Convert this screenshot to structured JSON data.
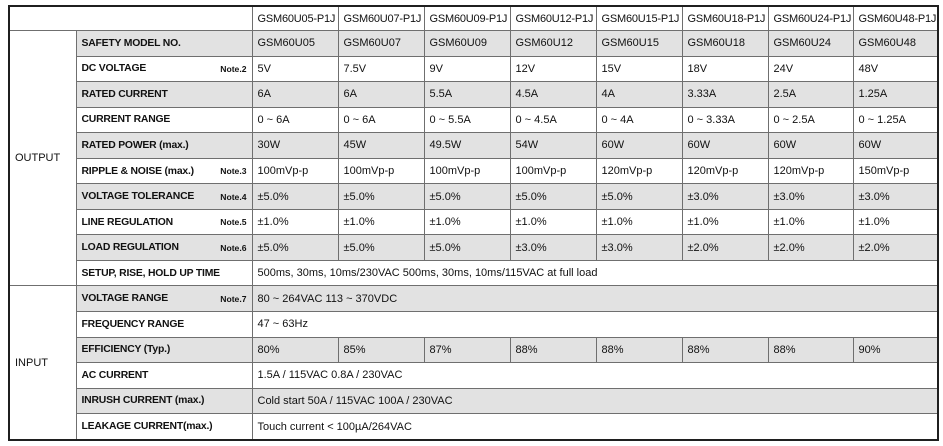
{
  "table": {
    "corner_label": "",
    "model_headers": [
      "GSM60U05-P1J",
      "GSM60U07-P1J",
      "GSM60U09-P1J",
      "GSM60U12-P1J",
      "GSM60U15-P1J",
      "GSM60U18-P1J",
      "GSM60U24-P1J",
      "GSM60U48-P1J"
    ],
    "shaded_color": "#e2e2e2",
    "groups": [
      {
        "label": "OUTPUT",
        "rows": [
          {
            "label": "SAFETY MODEL NO.",
            "note": "",
            "shaded": true,
            "cells": [
              "GSM60U05",
              "GSM60U07",
              "GSM60U09",
              "GSM60U12",
              "GSM60U15",
              "GSM60U18",
              "GSM60U24",
              "GSM60U48"
            ]
          },
          {
            "label": "DC VOLTAGE",
            "note": "Note.2",
            "shaded": false,
            "cells": [
              "5V",
              "7.5V",
              "9V",
              "12V",
              "15V",
              "18V",
              "24V",
              "48V"
            ]
          },
          {
            "label": "RATED CURRENT",
            "note": "",
            "shaded": true,
            "cells": [
              "6A",
              "6A",
              "5.5A",
              "4.5A",
              "4A",
              "3.33A",
              "2.5A",
              "1.25A"
            ]
          },
          {
            "label": "CURRENT RANGE",
            "note": "",
            "shaded": false,
            "cells": [
              "0 ~ 6A",
              "0 ~ 6A",
              "0 ~ 5.5A",
              "0 ~ 4.5A",
              "0 ~ 4A",
              "0 ~ 3.33A",
              "0 ~ 2.5A",
              "0 ~ 1.25A"
            ]
          },
          {
            "label": "RATED POWER (max.)",
            "note": "",
            "shaded": true,
            "cells": [
              "30W",
              "45W",
              "49.5W",
              "54W",
              "60W",
              "60W",
              "60W",
              "60W"
            ]
          },
          {
            "label": "RIPPLE & NOISE (max.)",
            "note": "Note.3",
            "shaded": false,
            "cells": [
              "100mVp-p",
              "100mVp-p",
              "100mVp-p",
              "100mVp-p",
              "120mVp-p",
              "120mVp-p",
              "120mVp-p",
              "150mVp-p"
            ]
          },
          {
            "label": "VOLTAGE TOLERANCE",
            "note": "Note.4",
            "shaded": true,
            "cells": [
              "±5.0%",
              "±5.0%",
              "±5.0%",
              "±5.0%",
              "±5.0%",
              "±3.0%",
              "±3.0%",
              "±3.0%"
            ]
          },
          {
            "label": "LINE REGULATION",
            "note": "Note.5",
            "shaded": false,
            "cells": [
              "±1.0%",
              "±1.0%",
              "±1.0%",
              "±1.0%",
              "±1.0%",
              "±1.0%",
              "±1.0%",
              "±1.0%"
            ]
          },
          {
            "label": "LOAD REGULATION",
            "note": "Note.6",
            "shaded": true,
            "cells": [
              "±5.0%",
              "±5.0%",
              "±5.0%",
              "±3.0%",
              "±3.0%",
              "±2.0%",
              "±2.0%",
              "±2.0%"
            ]
          },
          {
            "label": "SETUP, RISE, HOLD UP TIME",
            "note": "",
            "shaded": false,
            "merged": "500ms, 30ms, 10ms/230VAC        500ms, 30ms, 10ms/115VAC  at full load"
          }
        ]
      },
      {
        "label": "INPUT",
        "rows": [
          {
            "label": "VOLTAGE RANGE",
            "note": "Note.7",
            "shaded": true,
            "merged": "80 ~ 264VAC        113 ~ 370VDC"
          },
          {
            "label": "FREQUENCY RANGE",
            "note": "",
            "shaded": false,
            "merged": "47 ~ 63Hz"
          },
          {
            "label": "EFFICIENCY (Typ.)",
            "note": "",
            "shaded": true,
            "cells": [
              "80%",
              "85%",
              "87%",
              "88%",
              "88%",
              "88%",
              "88%",
              "90%"
            ]
          },
          {
            "label": "AC CURRENT",
            "note": "",
            "shaded": false,
            "merged": "1.5A / 115VAC        0.8A / 230VAC"
          },
          {
            "label": "INRUSH CURRENT (max.)",
            "note": "",
            "shaded": true,
            "merged": "Cold start  50A / 115VAC        100A / 230VAC"
          },
          {
            "label": "LEAKAGE CURRENT(max.)",
            "note": "",
            "shaded": false,
            "merged": "Touch current < 100µA/264VAC"
          }
        ]
      }
    ]
  }
}
